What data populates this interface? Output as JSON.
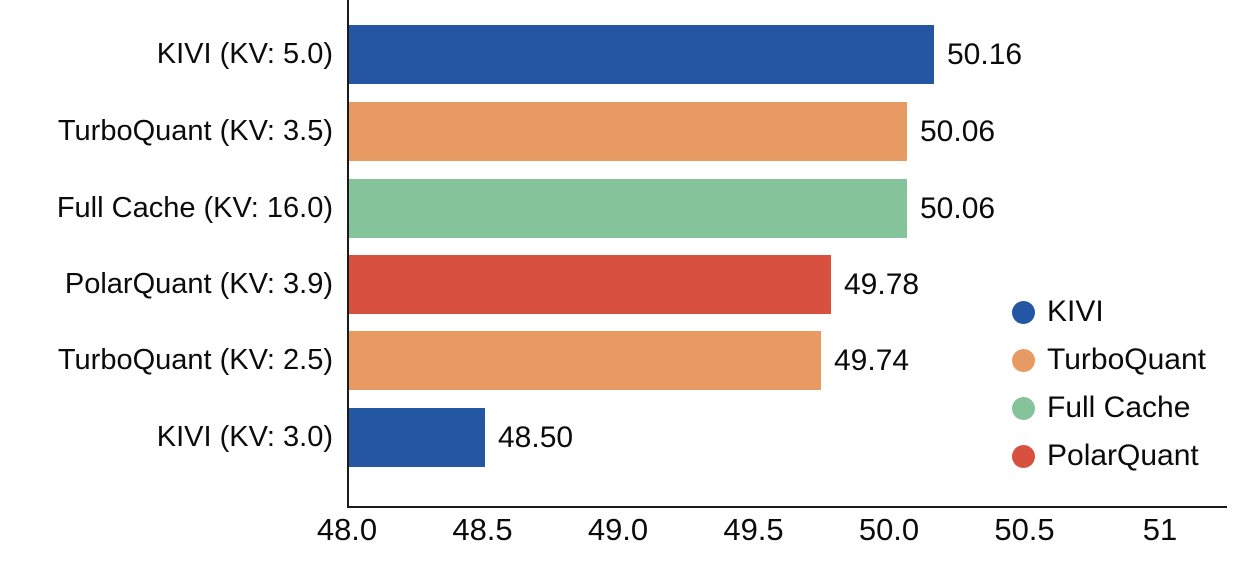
{
  "chart_data": {
    "type": "bar",
    "orientation": "horizontal",
    "title": "",
    "xlabel": "",
    "ylabel": "",
    "grid": false,
    "xlim": [
      48.0,
      51.24
    ],
    "categories": [
      "KIVI (KV: 5.0)",
      "TurboQuant (KV: 3.5)",
      "Full Cache (KV: 16.0)",
      "PolarQuant (KV: 3.9)",
      "TurboQuant (KV: 2.5)",
      "KIVI (KV: 3.0)"
    ],
    "values": [
      50.16,
      50.06,
      50.06,
      49.78,
      49.74,
      48.5
    ],
    "value_labels": [
      "50.16",
      "50.06",
      "50.06",
      "49.78",
      "49.74",
      "48.50"
    ],
    "bar_series": [
      "KIVI",
      "TurboQuant",
      "Full Cache",
      "PolarQuant",
      "TurboQuant",
      "KIVI"
    ],
    "bar_colors": [
      "#2456a4",
      "#e89a63",
      "#85c39b",
      "#d8503e",
      "#e89a63",
      "#2456a4"
    ],
    "x_ticks": [
      {
        "value": 48.0,
        "label": "48.0"
      },
      {
        "value": 48.5,
        "label": "48.5"
      },
      {
        "value": 49.0,
        "label": "49.0"
      },
      {
        "value": 49.5,
        "label": "49.5"
      },
      {
        "value": 50.0,
        "label": "50.0"
      },
      {
        "value": 50.5,
        "label": "50.5"
      },
      {
        "value": 51.0,
        "label": "51"
      }
    ],
    "legend": {
      "position": "right",
      "entries": [
        {
          "label": "KIVI",
          "color": "#2456a4"
        },
        {
          "label": "TurboQuant",
          "color": "#e89a63"
        },
        {
          "label": "Full Cache",
          "color": "#85c39b"
        },
        {
          "label": "PolarQuant",
          "color": "#d8503e"
        }
      ]
    }
  },
  "colors": {
    "background": "#ffffff",
    "axis_line": "#1a1a1a",
    "text": "#0b0b0b",
    "blue": "#2456a4",
    "orange": "#e89a63",
    "green": "#85c39b",
    "red": "#d8503e"
  }
}
